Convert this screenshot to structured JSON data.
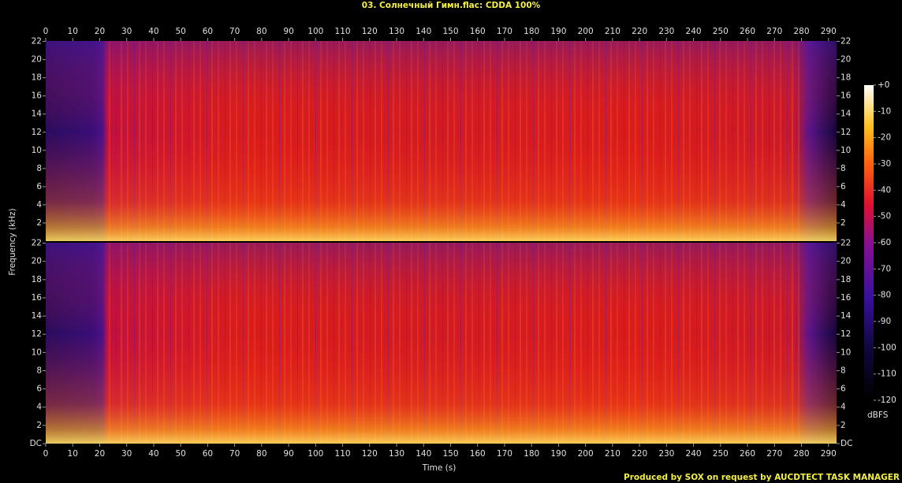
{
  "chart_data": {
    "type": "spectrogram",
    "title": "03. Солнечный Гимн.flac: CDDA 100%",
    "xlabel": "Time (s)",
    "ylabel": "Frequency (kHz)",
    "footer": "Produced by SOX on request by AUCDTECT TASK MANAGER",
    "xlim": [
      0,
      293
    ],
    "xticks": [
      0,
      10,
      20,
      30,
      40,
      50,
      60,
      70,
      80,
      90,
      100,
      110,
      120,
      130,
      140,
      150,
      160,
      170,
      180,
      190,
      200,
      210,
      220,
      230,
      240,
      250,
      260,
      270,
      280,
      290
    ],
    "ylim": [
      0,
      22.05
    ],
    "panels": [
      {
        "yticks": [
          2,
          4,
          6,
          8,
          10,
          12,
          14,
          16,
          18,
          20,
          22
        ]
      },
      {
        "yticks": [
          {
            "value": 0,
            "label": "DC"
          },
          2,
          4,
          6,
          8,
          10,
          12,
          14,
          16,
          18,
          20,
          22
        ]
      }
    ],
    "colorbar": {
      "label": "dBFS",
      "lim": [
        -120,
        0
      ],
      "ticks": [
        {
          "value": 0,
          "label": "+0"
        },
        -10,
        -20,
        -30,
        -40,
        -50,
        -60,
        -70,
        -80,
        -90,
        -100,
        -110,
        -120
      ]
    }
  }
}
